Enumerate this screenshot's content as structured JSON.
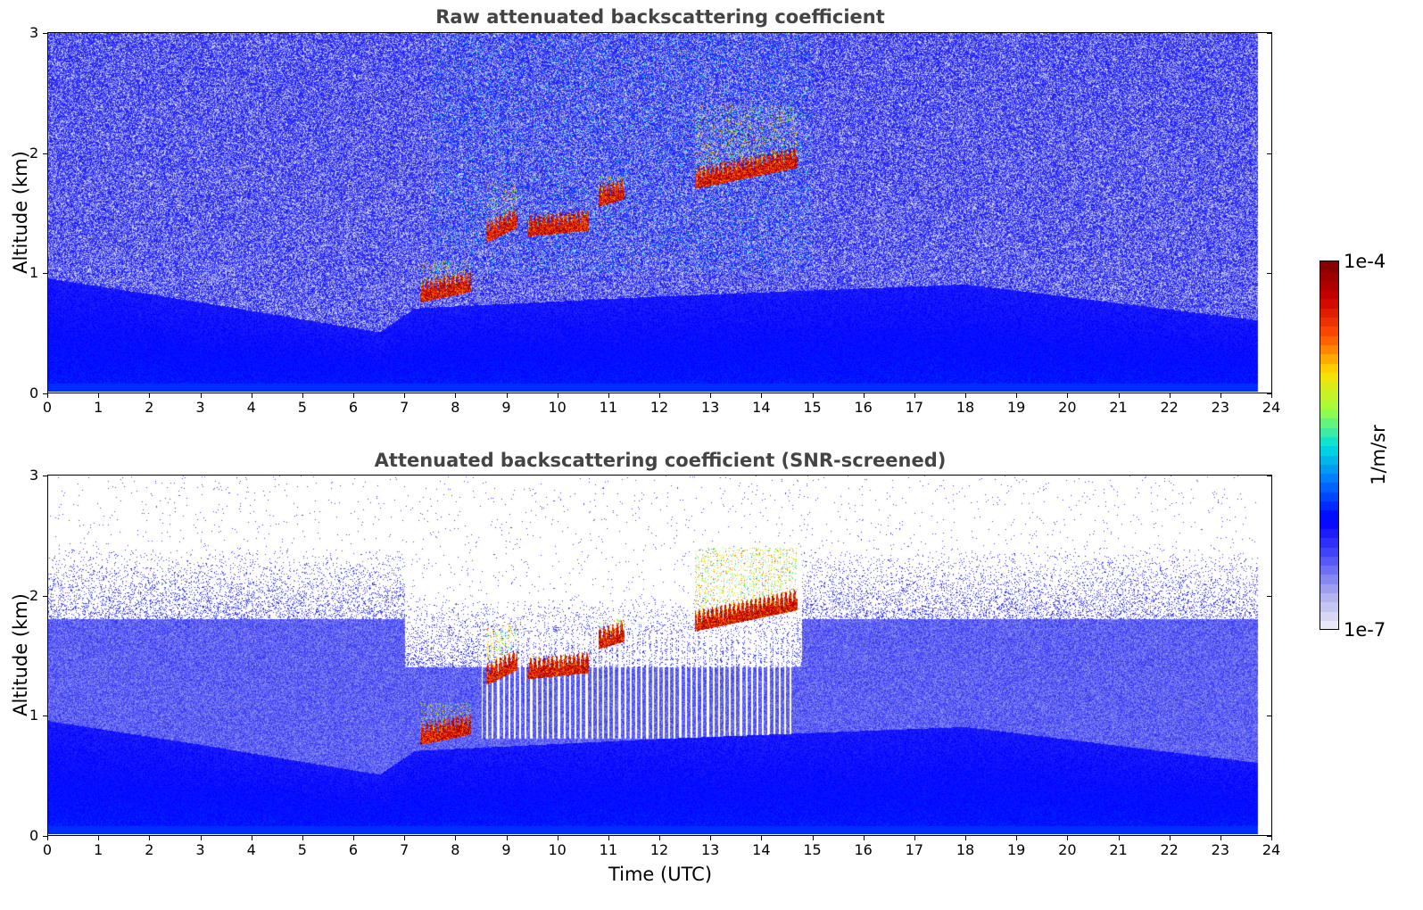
{
  "panels": [
    {
      "title": "Raw attenuated backscattering coefficient",
      "ylabel": "Altitude (km)",
      "xlabel": "",
      "mode": "raw"
    },
    {
      "title": "Attenuated backscattering coefficient (SNR-screened)",
      "ylabel": "Altitude (km)",
      "xlabel": "Time (UTC)",
      "mode": "snr"
    }
  ],
  "chart_data": {
    "type": "heatmap",
    "x_range": [
      0,
      24
    ],
    "x_ticks": [
      "0",
      "1",
      "2",
      "3",
      "4",
      "5",
      "6",
      "7",
      "8",
      "9",
      "10",
      "11",
      "12",
      "13",
      "14",
      "15",
      "16",
      "17",
      "18",
      "19",
      "20",
      "21",
      "22",
      "23",
      "24"
    ],
    "y_range": [
      0,
      3
    ],
    "y_ticks": [
      "0",
      "1",
      "2",
      "3"
    ],
    "data_end_time": 23.75,
    "colorbar": {
      "label": "1/m/sr",
      "min_label": "1e-7",
      "max_label": "1e-4",
      "scale": "log",
      "range": [
        1e-07,
        0.0001
      ]
    },
    "features": {
      "boundary_layer_top_km": [
        {
          "t": 0,
          "h": 0.95
        },
        {
          "t": 3,
          "h": 0.75
        },
        {
          "t": 6.5,
          "h": 0.5
        },
        {
          "t": 7.2,
          "h": 0.7
        },
        {
          "t": 12,
          "h": 0.8
        },
        {
          "t": 18,
          "h": 0.9
        },
        {
          "t": 23.75,
          "h": 0.6
        }
      ],
      "cloud_segments": [
        {
          "t_start": 7.3,
          "t_end": 8.3,
          "base_km": 0.75,
          "top_km": 1.1
        },
        {
          "t_start": 8.6,
          "t_end": 9.2,
          "base_km": 1.25,
          "top_km": 1.75
        },
        {
          "t_start": 9.4,
          "t_end": 10.6,
          "base_km": 1.3,
          "top_km": 1.5
        },
        {
          "t_start": 10.8,
          "t_end": 11.3,
          "base_km": 1.55,
          "top_km": 1.8
        },
        {
          "t_start": 12.7,
          "t_end": 14.7,
          "base_km": 1.7,
          "top_km": 2.4
        }
      ]
    }
  },
  "colors": {
    "colormap": [
      "#f2f2f8",
      "#aaaaee",
      "#4a4ef6",
      "#0000ff",
      "#0070ff",
      "#00e0e0",
      "#a0ff40",
      "#ffe000",
      "#ff5000",
      "#cc0000",
      "#800000"
    ]
  }
}
